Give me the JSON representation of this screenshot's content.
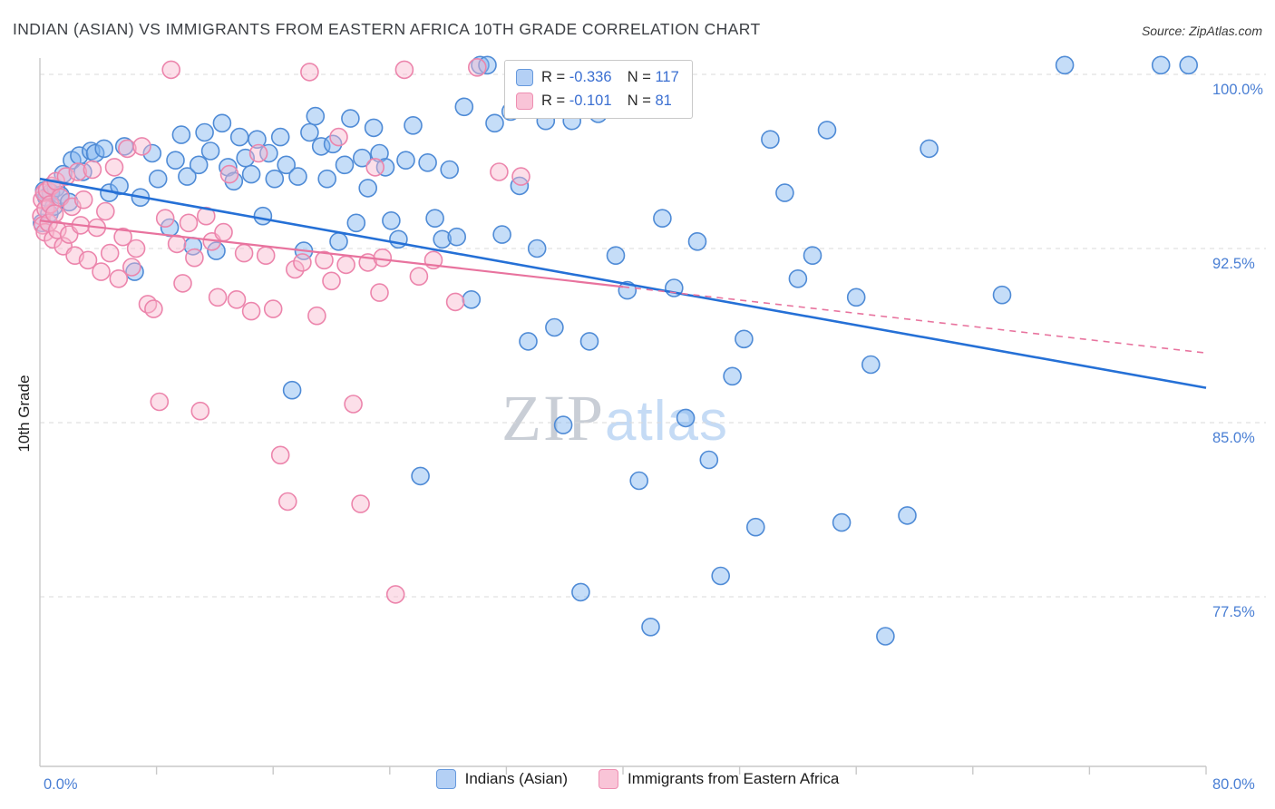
{
  "header": {
    "title": "INDIAN (ASIAN) VS IMMIGRANTS FROM EASTERN AFRICA 10TH GRADE CORRELATION CHART",
    "source": "Source: ZipAtlas.com"
  },
  "watermark": {
    "part1": "ZIP",
    "part2": "atlas"
  },
  "axes": {
    "y_title": "10th Grade",
    "x_min_label": "0.0%",
    "x_max_label": "80.0%",
    "y_ticks": [
      {
        "value": 100,
        "label": "100.0%"
      },
      {
        "value": 92.5,
        "label": "92.5%"
      },
      {
        "value": 85,
        "label": "85.0%"
      },
      {
        "value": 77.5,
        "label": "77.5%"
      }
    ]
  },
  "legend_stats": {
    "rows": [
      {
        "series": "Indians (Asian)",
        "r_label": "R = ",
        "r_value": "-0.336",
        "n_label": "N = ",
        "n_value": "117"
      },
      {
        "series": "Immigrants from Eastern Africa",
        "r_label": "R = ",
        "r_value": "-0.101",
        "n_label": "N = ",
        "n_value": "81"
      }
    ]
  },
  "bottom_legend": {
    "items": [
      {
        "label": "Indians (Asian)",
        "color": "#b4d0f5"
      },
      {
        "label": "Immigrants from Eastern Africa",
        "color": "#f9c4d7"
      }
    ]
  },
  "colors": {
    "blue_fill": "#7fb3ef",
    "blue_stroke": "#4f8bd6",
    "blue_line": "#2570d6",
    "pink_fill": "#f8b8cf",
    "pink_stroke": "#ec85ac",
    "pink_line": "#e8739e",
    "tick_label": "#4a7fd4",
    "grid": "#dadada",
    "axis": "#c9c9c9"
  },
  "chart_data": {
    "type": "scatter",
    "title": "INDIAN (ASIAN) VS IMMIGRANTS FROM EASTERN AFRICA 10TH GRADE CORRELATION CHART",
    "xlabel": "",
    "ylabel": "10th Grade",
    "xlim": [
      0,
      80
    ],
    "ylim": [
      70,
      101
    ],
    "x_format": "percent",
    "y_format": "percent",
    "grid": "horizontal-dashed",
    "legend_position": "bottom-center",
    "series": [
      {
        "name": "Indians (Asian)",
        "r": -0.336,
        "n": 117,
        "points": [
          [
            0.15,
            93.6
          ],
          [
            0.3,
            95.0
          ],
          [
            0.45,
            94.7
          ],
          [
            0.65,
            94.0
          ],
          [
            0.75,
            94.9
          ],
          [
            0.95,
            94.3
          ],
          [
            1.1,
            95.1
          ],
          [
            1.4,
            94.8
          ],
          [
            1.6,
            95.7
          ],
          [
            2.0,
            94.5
          ],
          [
            2.2,
            96.3
          ],
          [
            2.7,
            96.5
          ],
          [
            2.95,
            95.8
          ],
          [
            3.5,
            96.7
          ],
          [
            3.8,
            96.6
          ],
          [
            4.4,
            96.8
          ],
          [
            4.75,
            94.9
          ],
          [
            5.45,
            95.2
          ],
          [
            5.8,
            96.9
          ],
          [
            6.5,
            91.5
          ],
          [
            6.9,
            94.7
          ],
          [
            7.7,
            96.6
          ],
          [
            8.1,
            95.5
          ],
          [
            8.9,
            93.4
          ],
          [
            9.3,
            96.3
          ],
          [
            9.7,
            97.4
          ],
          [
            10.1,
            95.6
          ],
          [
            10.5,
            92.6
          ],
          [
            10.9,
            96.1
          ],
          [
            11.3,
            97.5
          ],
          [
            11.7,
            96.7
          ],
          [
            12.1,
            92.4
          ],
          [
            12.5,
            97.9
          ],
          [
            12.9,
            96.0
          ],
          [
            13.3,
            95.4
          ],
          [
            13.7,
            97.3
          ],
          [
            14.1,
            96.4
          ],
          [
            14.5,
            95.7
          ],
          [
            14.9,
            97.2
          ],
          [
            15.3,
            93.9
          ],
          [
            15.7,
            96.6
          ],
          [
            16.1,
            95.5
          ],
          [
            16.5,
            97.3
          ],
          [
            16.9,
            96.1
          ],
          [
            17.3,
            86.4
          ],
          [
            17.7,
            95.6
          ],
          [
            18.1,
            92.4
          ],
          [
            18.5,
            97.5
          ],
          [
            18.9,
            98.2
          ],
          [
            19.3,
            96.9
          ],
          [
            19.7,
            95.5
          ],
          [
            20.1,
            97.0
          ],
          [
            20.5,
            92.8
          ],
          [
            20.9,
            96.1
          ],
          [
            21.3,
            98.1
          ],
          [
            21.7,
            93.6
          ],
          [
            22.1,
            96.4
          ],
          [
            22.5,
            95.1
          ],
          [
            22.9,
            97.7
          ],
          [
            23.3,
            96.6
          ],
          [
            23.7,
            96.0
          ],
          [
            24.1,
            93.7
          ],
          [
            24.6,
            92.9
          ],
          [
            25.1,
            96.3
          ],
          [
            25.6,
            97.8
          ],
          [
            26.1,
            82.7
          ],
          [
            26.6,
            96.2
          ],
          [
            27.1,
            93.8
          ],
          [
            27.6,
            92.9
          ],
          [
            28.1,
            95.9
          ],
          [
            28.6,
            93.0
          ],
          [
            29.1,
            98.6
          ],
          [
            29.6,
            90.3
          ],
          [
            30.2,
            100.4
          ],
          [
            30.7,
            100.4
          ],
          [
            31.2,
            97.9
          ],
          [
            31.7,
            93.1
          ],
          [
            32.3,
            98.4
          ],
          [
            32.9,
            95.2
          ],
          [
            33.5,
            88.5
          ],
          [
            34.1,
            92.5
          ],
          [
            34.7,
            98.0
          ],
          [
            35.3,
            89.1
          ],
          [
            35.9,
            84.9
          ],
          [
            36.5,
            98.0
          ],
          [
            37.1,
            77.7
          ],
          [
            37.7,
            88.5
          ],
          [
            38.3,
            98.3
          ],
          [
            38.9,
            98.7
          ],
          [
            39.5,
            92.2
          ],
          [
            40.3,
            90.7
          ],
          [
            41.1,
            82.5
          ],
          [
            41.9,
            76.2
          ],
          [
            42.7,
            93.8
          ],
          [
            43.5,
            90.8
          ],
          [
            44.3,
            85.2
          ],
          [
            45.1,
            92.8
          ],
          [
            45.9,
            83.4
          ],
          [
            46.7,
            78.4
          ],
          [
            47.5,
            87.0
          ],
          [
            48.3,
            88.6
          ],
          [
            49.1,
            80.5
          ],
          [
            50.1,
            97.2
          ],
          [
            51.1,
            94.9
          ],
          [
            52.0,
            91.2
          ],
          [
            53.0,
            92.2
          ],
          [
            54.0,
            97.6
          ],
          [
            55.0,
            80.7
          ],
          [
            56.0,
            90.4
          ],
          [
            57.0,
            87.5
          ],
          [
            58.0,
            75.8
          ],
          [
            59.5,
            81.0
          ],
          [
            61.0,
            96.8
          ],
          [
            66.0,
            90.5
          ],
          [
            70.3,
            100.4
          ],
          [
            76.9,
            100.4
          ],
          [
            78.8,
            100.4
          ]
        ]
      },
      {
        "name": "Immigrants from Eastern Africa",
        "r": -0.101,
        "n": 81,
        "points": [
          [
            0.1,
            93.9
          ],
          [
            0.15,
            94.6
          ],
          [
            0.2,
            93.5
          ],
          [
            0.3,
            94.9
          ],
          [
            0.35,
            93.2
          ],
          [
            0.4,
            94.2
          ],
          [
            0.5,
            95.0
          ],
          [
            0.6,
            93.6
          ],
          [
            0.7,
            94.4
          ],
          [
            0.8,
            95.2
          ],
          [
            0.9,
            92.9
          ],
          [
            1.0,
            94.0
          ],
          [
            1.1,
            95.4
          ],
          [
            1.2,
            93.3
          ],
          [
            1.4,
            94.7
          ],
          [
            1.6,
            92.6
          ],
          [
            1.8,
            95.6
          ],
          [
            2.0,
            93.1
          ],
          [
            2.2,
            94.3
          ],
          [
            2.4,
            92.2
          ],
          [
            2.6,
            95.8
          ],
          [
            2.8,
            93.5
          ],
          [
            3.0,
            94.6
          ],
          [
            3.3,
            92.0
          ],
          [
            3.6,
            95.9
          ],
          [
            3.9,
            93.4
          ],
          [
            4.2,
            91.5
          ],
          [
            4.5,
            94.1
          ],
          [
            4.8,
            92.3
          ],
          [
            5.1,
            96.0
          ],
          [
            5.4,
            91.2
          ],
          [
            5.7,
            93.0
          ],
          [
            6.0,
            96.8
          ],
          [
            6.3,
            91.7
          ],
          [
            6.6,
            92.5
          ],
          [
            7.0,
            96.9
          ],
          [
            7.4,
            90.1
          ],
          [
            7.8,
            89.9
          ],
          [
            8.2,
            85.9
          ],
          [
            8.6,
            93.8
          ],
          [
            9.0,
            100.2
          ],
          [
            9.4,
            92.7
          ],
          [
            9.8,
            91.0
          ],
          [
            10.2,
            93.6
          ],
          [
            10.6,
            92.1
          ],
          [
            11.0,
            85.5
          ],
          [
            11.4,
            93.9
          ],
          [
            11.8,
            92.8
          ],
          [
            12.2,
            90.4
          ],
          [
            12.6,
            93.2
          ],
          [
            13.0,
            95.7
          ],
          [
            13.5,
            90.3
          ],
          [
            14.0,
            92.3
          ],
          [
            14.5,
            89.8
          ],
          [
            15.0,
            96.6
          ],
          [
            15.5,
            92.2
          ],
          [
            16.0,
            89.9
          ],
          [
            16.5,
            83.6
          ],
          [
            17.0,
            81.6
          ],
          [
            17.5,
            91.6
          ],
          [
            18.0,
            91.9
          ],
          [
            18.5,
            100.1
          ],
          [
            19.0,
            89.6
          ],
          [
            19.5,
            92.0
          ],
          [
            20.0,
            91.1
          ],
          [
            20.5,
            97.3
          ],
          [
            21.0,
            91.8
          ],
          [
            21.5,
            85.8
          ],
          [
            22.0,
            81.5
          ],
          [
            22.5,
            91.9
          ],
          [
            23.0,
            96.0
          ],
          [
            23.3,
            90.6
          ],
          [
            23.5,
            92.1
          ],
          [
            24.4,
            77.6
          ],
          [
            25.0,
            100.2
          ],
          [
            26.0,
            91.3
          ],
          [
            27.0,
            92.0
          ],
          [
            28.5,
            90.2
          ],
          [
            30.0,
            100.3
          ],
          [
            31.5,
            95.8
          ],
          [
            33.0,
            95.6
          ]
        ]
      }
    ],
    "trend_lines": [
      {
        "series": "Indians (Asian)",
        "x1": 0,
        "y1": 95.5,
        "x2": 80,
        "y2": 86.5,
        "style": "solid"
      },
      {
        "series": "Immigrants from Eastern Africa",
        "x1": 0,
        "y1": 93.7,
        "x2": 80,
        "y2": 88.0,
        "style": "solid-then-dashed",
        "solid_until_x": 40
      }
    ]
  }
}
